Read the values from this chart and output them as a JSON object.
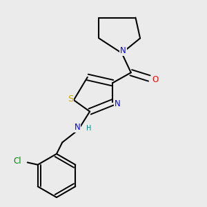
{
  "background_color": "#ebebeb",
  "bond_color": "#000000",
  "atom_colors": {
    "N": "#0000ff",
    "S": "#ccaa00",
    "O": "#ff0000",
    "Cl": "#008800",
    "C": "#000000",
    "H": "#008888"
  },
  "font_size_atom": 8.5,
  "font_size_small": 7.0
}
